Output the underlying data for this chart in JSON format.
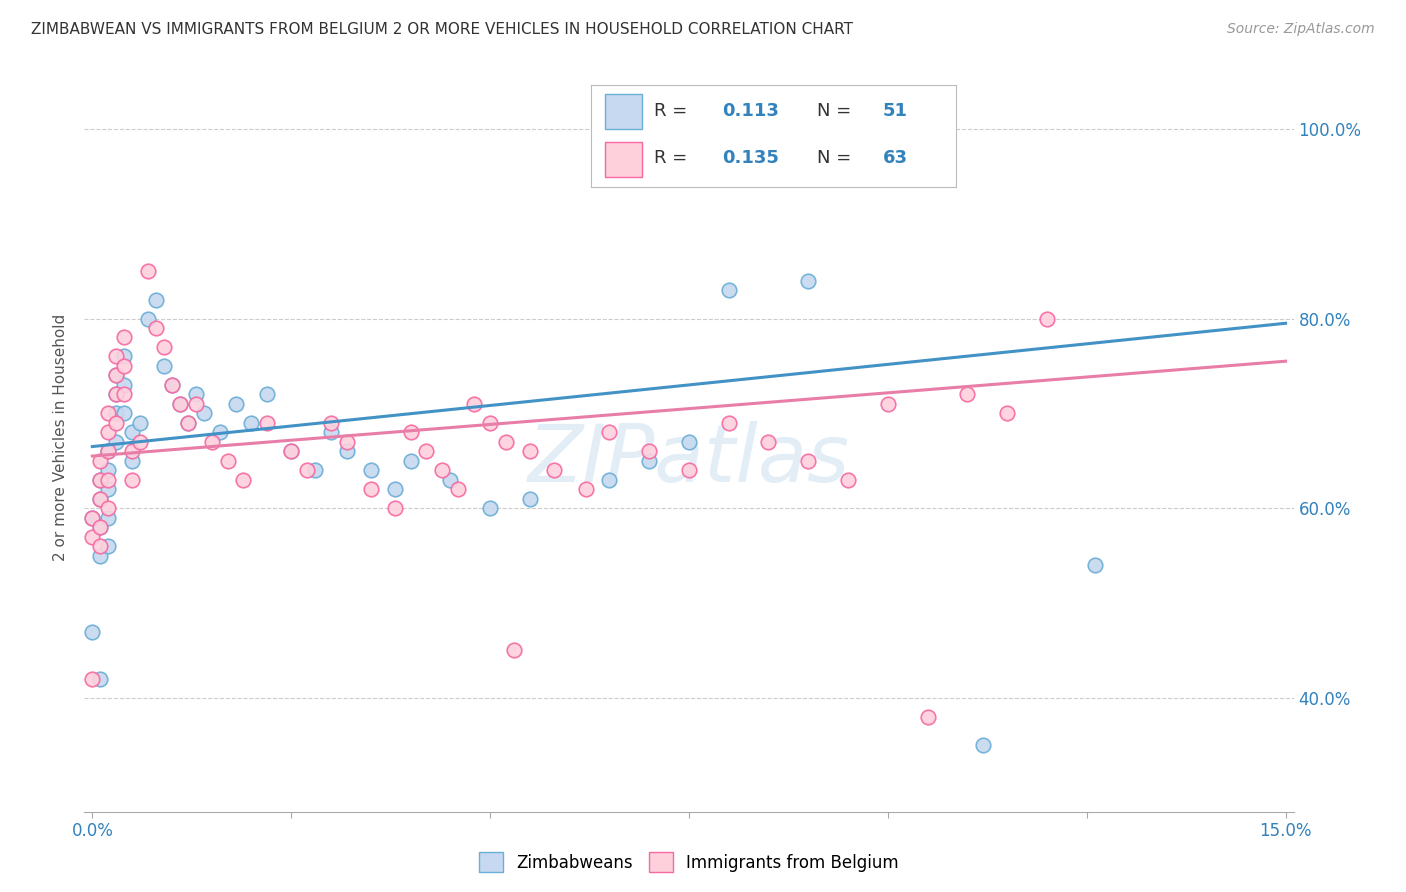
{
  "title": "ZIMBABWEAN VS IMMIGRANTS FROM BELGIUM 2 OR MORE VEHICLES IN HOUSEHOLD CORRELATION CHART",
  "source": "Source: ZipAtlas.com",
  "ylabel_label": "2 or more Vehicles in Household",
  "color_blue_fill": "#c6d9f0",
  "color_blue_edge": "#6baed6",
  "color_pink_fill": "#fdd0dc",
  "color_pink_edge": "#f768a1",
  "color_blue_line": "#4292c6",
  "color_pink_line": "#e87da8",
  "color_blue_text": "#3182bd",
  "xmin": 0.0,
  "xmax": 0.15,
  "ymin": 0.28,
  "ymax": 1.07,
  "line_zim_x0": 0.0,
  "line_zim_y0": 0.665,
  "line_zim_x1": 0.15,
  "line_zim_y1": 0.795,
  "line_bel_x0": 0.0,
  "line_bel_y0": 0.655,
  "line_bel_x1": 0.15,
  "line_bel_y1": 0.755,
  "zim_x": [
    0.0,
    0.0,
    0.001,
    0.001,
    0.001,
    0.001,
    0.001,
    0.002,
    0.002,
    0.002,
    0.002,
    0.002,
    0.003,
    0.003,
    0.003,
    0.003,
    0.004,
    0.004,
    0.004,
    0.005,
    0.005,
    0.006,
    0.007,
    0.008,
    0.009,
    0.01,
    0.011,
    0.012,
    0.013,
    0.014,
    0.016,
    0.018,
    0.02,
    0.022,
    0.025,
    0.028,
    0.03,
    0.032,
    0.035,
    0.038,
    0.04,
    0.045,
    0.05,
    0.055,
    0.065,
    0.07,
    0.075,
    0.08,
    0.09,
    0.112,
    0.126
  ],
  "zim_y": [
    0.59,
    0.47,
    0.63,
    0.61,
    0.58,
    0.55,
    0.42,
    0.66,
    0.64,
    0.62,
    0.59,
    0.56,
    0.74,
    0.72,
    0.7,
    0.67,
    0.76,
    0.73,
    0.7,
    0.68,
    0.65,
    0.69,
    0.8,
    0.82,
    0.75,
    0.73,
    0.71,
    0.69,
    0.72,
    0.7,
    0.68,
    0.71,
    0.69,
    0.72,
    0.66,
    0.64,
    0.68,
    0.66,
    0.64,
    0.62,
    0.65,
    0.63,
    0.6,
    0.61,
    0.63,
    0.65,
    0.67,
    0.83,
    0.84,
    0.35,
    0.54
  ],
  "bel_x": [
    0.0,
    0.0,
    0.0,
    0.001,
    0.001,
    0.001,
    0.001,
    0.001,
    0.002,
    0.002,
    0.002,
    0.002,
    0.002,
    0.003,
    0.003,
    0.003,
    0.003,
    0.004,
    0.004,
    0.004,
    0.005,
    0.005,
    0.006,
    0.007,
    0.008,
    0.009,
    0.01,
    0.011,
    0.012,
    0.013,
    0.015,
    0.017,
    0.019,
    0.022,
    0.025,
    0.027,
    0.03,
    0.032,
    0.035,
    0.038,
    0.04,
    0.042,
    0.044,
    0.046,
    0.048,
    0.05,
    0.052,
    0.053,
    0.055,
    0.058,
    0.062,
    0.065,
    0.07,
    0.075,
    0.08,
    0.085,
    0.09,
    0.095,
    0.1,
    0.105,
    0.11,
    0.115,
    0.12
  ],
  "bel_y": [
    0.59,
    0.57,
    0.42,
    0.65,
    0.63,
    0.61,
    0.58,
    0.56,
    0.7,
    0.68,
    0.66,
    0.63,
    0.6,
    0.76,
    0.74,
    0.72,
    0.69,
    0.78,
    0.75,
    0.72,
    0.66,
    0.63,
    0.67,
    0.85,
    0.79,
    0.77,
    0.73,
    0.71,
    0.69,
    0.71,
    0.67,
    0.65,
    0.63,
    0.69,
    0.66,
    0.64,
    0.69,
    0.67,
    0.62,
    0.6,
    0.68,
    0.66,
    0.64,
    0.62,
    0.71,
    0.69,
    0.67,
    0.45,
    0.66,
    0.64,
    0.62,
    0.68,
    0.66,
    0.64,
    0.69,
    0.67,
    0.65,
    0.63,
    0.71,
    0.38,
    0.72,
    0.7,
    0.8
  ]
}
